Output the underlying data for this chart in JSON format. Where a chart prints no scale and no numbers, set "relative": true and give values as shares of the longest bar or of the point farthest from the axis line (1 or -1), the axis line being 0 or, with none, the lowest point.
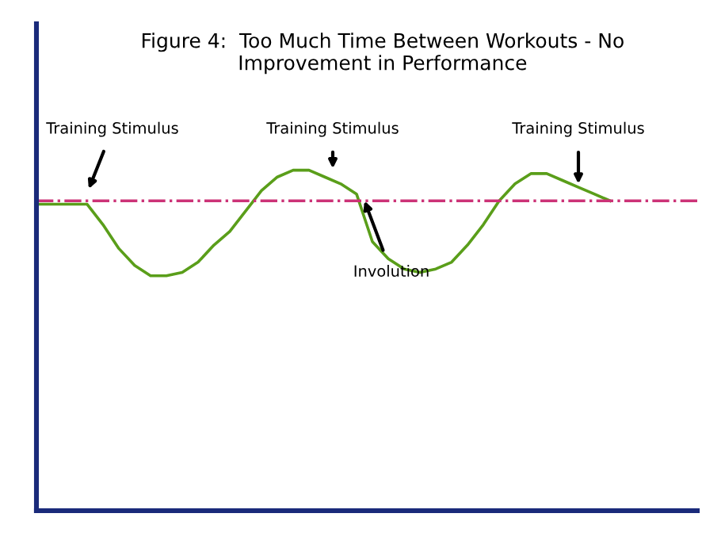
{
  "chart_data": {
    "type": "line",
    "title": "Figure 4:  Too Much Time Between Workouts - No\nImprovement in Performance",
    "relative": true,
    "categories": [
      null,
      null,
      null,
      null,
      null,
      null,
      null,
      null,
      null,
      null,
      null,
      null,
      null,
      null,
      null,
      null,
      null,
      null,
      null,
      null,
      null,
      null,
      null,
      null,
      null,
      null,
      null,
      null,
      null,
      null,
      null,
      null,
      null,
      null,
      null,
      null,
      null
    ],
    "series": [
      {
        "color": "#5a9e1a",
        "values": [
          0.9,
          0.9,
          0.9,
          0.9,
          0.84,
          0.77,
          0.72,
          0.69,
          0.69,
          0.7,
          0.73,
          0.78,
          0.82,
          0.88,
          0.94,
          0.98,
          1.0,
          1.0,
          0.98,
          0.96,
          0.93,
          0.79,
          0.74,
          0.71,
          0.7,
          0.71,
          0.73,
          0.78,
          0.84,
          0.91,
          0.96,
          0.99,
          0.99,
          0.97,
          0.95,
          0.93,
          0.91
        ]
      }
    ],
    "ref_lines": [
      {
        "axis": "y",
        "value": 0.91,
        "color": "#cc3377",
        "line_style": "dashdot"
      }
    ],
    "annotations": [
      "Training Stimulus",
      "Training Stimulus",
      "Training Stimulus",
      "Involution"
    ],
    "marker": "none",
    "line_style": "solid",
    "legend": false
  }
}
